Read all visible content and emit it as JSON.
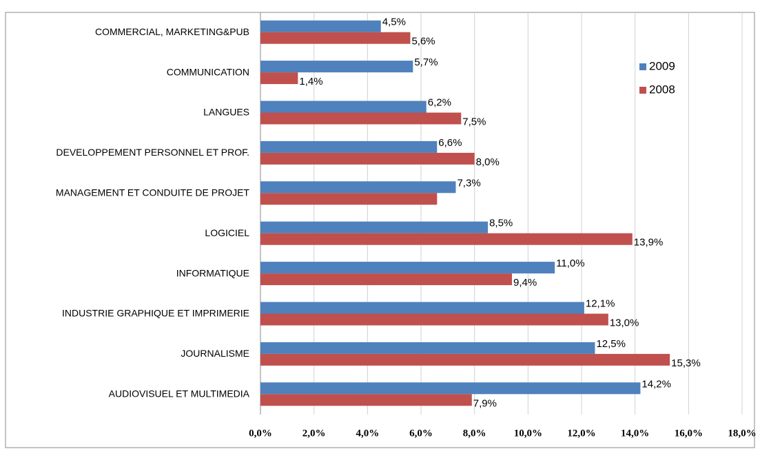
{
  "chart_data": {
    "type": "bar",
    "orientation": "horizontal",
    "categories": [
      "COMMERCIAL, MARKETING&PUB",
      "COMMUNICATION",
      "LANGUES",
      "DEVELOPPEMENT PERSONNEL ET PROF.",
      "MANAGEMENT ET CONDUITE DE PROJET",
      "LOGICIEL",
      "INFORMATIQUE",
      "INDUSTRIE GRAPHIQUE ET IMPRIMERIE",
      "JOURNALISME",
      "AUDIOVISUEL ET MULTIMEDIA"
    ],
    "series": [
      {
        "name": "2009",
        "color": "#4f81bd",
        "values": [
          4.5,
          5.7,
          6.2,
          6.6,
          7.3,
          8.5,
          11.0,
          12.1,
          12.5,
          14.2
        ],
        "value_labels": [
          "4,5%",
          "5,7%",
          "6,2%",
          "6,6%",
          "7,3%",
          "8,5%",
          "11,0%",
          "12,1%",
          "12,5%",
          "14,2%"
        ]
      },
      {
        "name": "2008",
        "color": "#c0504d",
        "values": [
          5.6,
          1.4,
          7.5,
          8.0,
          6.6,
          13.9,
          9.4,
          13.0,
          15.3,
          7.9
        ],
        "value_labels": [
          "5,6%",
          "1,4%",
          "7,5%",
          "8,0%",
          null,
          "13,9%",
          "9,4%",
          "13,0%",
          "15,3%",
          "7,9%"
        ]
      }
    ],
    "xlim": [
      0,
      18
    ],
    "xticks": [
      {
        "value": 0,
        "label": "0,0%"
      },
      {
        "value": 2,
        "label": "2,0%"
      },
      {
        "value": 4,
        "label": "4,0%"
      },
      {
        "value": 6,
        "label": "6,0%"
      },
      {
        "value": 8,
        "label": "8,0%"
      },
      {
        "value": 10,
        "label": "10,0%"
      },
      {
        "value": 12,
        "label": "12,0%"
      },
      {
        "value": 14,
        "label": "14,0%"
      },
      {
        "value": 16,
        "label": "16,0%"
      },
      {
        "value": 18,
        "label": "18,0%"
      }
    ],
    "grid": true,
    "legend": "top-right"
  }
}
